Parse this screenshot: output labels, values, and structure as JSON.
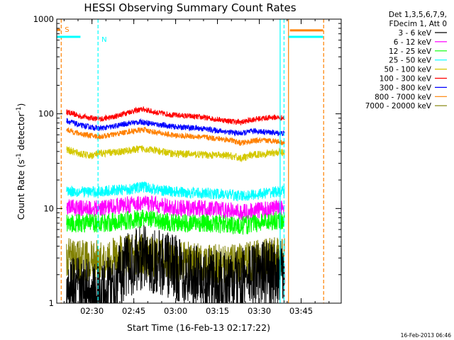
{
  "chart_data": {
    "type": "line",
    "title": "HESSI Observing Summary Count Rates",
    "xlabel": "Start Time (16-Feb-13 02:17:22)",
    "ylabel_main": "Count Rate (s",
    "ylabel_sup1": "-1",
    "ylabel_mid": " detector",
    "ylabel_sup2": "-1",
    "ylabel_end": ")",
    "footer": "16-Feb-2013 06:46",
    "y_scale": "log",
    "ylim": [
      1,
      1000
    ],
    "xlim_minutes": [
      0,
      102
    ],
    "y_ticks": [
      {
        "value": 1,
        "label": "1"
      },
      {
        "value": 10,
        "label": "10"
      },
      {
        "value": 100,
        "label": "100"
      },
      {
        "value": 1000,
        "label": "1000"
      }
    ],
    "x_ticks": [
      {
        "minutes": 12.63,
        "label": "02:30"
      },
      {
        "minutes": 27.63,
        "label": "02:45"
      },
      {
        "minutes": 42.63,
        "label": "03:00"
      },
      {
        "minutes": 57.63,
        "label": "03:15"
      },
      {
        "minutes": 72.63,
        "label": "03:30"
      },
      {
        "minutes": 87.63,
        "label": "03:45"
      }
    ],
    "legend_header": [
      "Det 1,3,5,6,7,9,",
      "FDecim 1, Att 0"
    ],
    "legend": [
      {
        "label": "3 - 6 keV",
        "color": "#000000"
      },
      {
        "label": "6 - 12 keV",
        "color": "#ff00ff"
      },
      {
        "label": "12 - 25 keV",
        "color": "#00ff00"
      },
      {
        "label": "25 - 50 keV",
        "color": "#00ffff"
      },
      {
        "label": "50 - 100 keV",
        "color": "#d4c800"
      },
      {
        "label": "100 - 300 keV",
        "color": "#ff0000"
      },
      {
        "label": "300 - 800 keV",
        "color": "#0000ff"
      },
      {
        "label": "800 - 7000 keV",
        "color": "#ff8000"
      },
      {
        "label": "7000 - 20000 keV",
        "color": "#808000"
      }
    ],
    "flags": [
      {
        "label": "S",
        "color": "#ff8000",
        "minutes": 1.6,
        "y_frac": 0.035
      },
      {
        "label": "N",
        "color": "#00ffff",
        "minutes": 14.8,
        "y_frac": 0.07
      }
    ],
    "vertical_lines": [
      {
        "minutes": 1.6,
        "color": "#ff8000",
        "dashed": true
      },
      {
        "minutes": 14.8,
        "color": "#00ffff",
        "dashed": true
      },
      {
        "minutes": 80.1,
        "color": "#00ffff",
        "dashed": false
      },
      {
        "minutes": 81.5,
        "color": "#00ffff",
        "dashed": true
      },
      {
        "minutes": 83.1,
        "color": "#ff8000",
        "dashed": false
      },
      {
        "minutes": 95.7,
        "color": "#ff8000",
        "dashed": true
      }
    ],
    "horizontal_bars": [
      {
        "color": "#00ffff",
        "x0": 0,
        "x1": 8.5,
        "y": 650
      },
      {
        "color": "#ff8000",
        "x0": 0,
        "x1": 1.3,
        "y": 770
      },
      {
        "color": "#00ffff",
        "x0": 83.1,
        "x1": 95.5,
        "y": 650
      },
      {
        "color": "#ff8000",
        "x0": 83.6,
        "x1": 95.5,
        "y": 760
      }
    ],
    "data_window_minutes": [
      3.5,
      81.7
    ],
    "series": [
      {
        "name": "100 - 300 keV",
        "color": "#ff0000",
        "noise": 0.03,
        "values": [
          [
            3.5,
            105
          ],
          [
            8,
            95
          ],
          [
            15,
            88
          ],
          [
            20,
            92
          ],
          [
            26,
            105
          ],
          [
            31,
            112
          ],
          [
            35,
            104
          ],
          [
            42,
            97
          ],
          [
            52,
            92
          ],
          [
            62,
            84
          ],
          [
            66,
            81
          ],
          [
            71,
            88
          ],
          [
            78,
            92
          ],
          [
            81.7,
            90
          ]
        ]
      },
      {
        "name": "300 - 800 keV",
        "color": "#0000ff",
        "noise": 0.03,
        "values": [
          [
            3.5,
            85
          ],
          [
            8,
            76
          ],
          [
            15,
            70
          ],
          [
            20,
            73
          ],
          [
            26,
            80
          ],
          [
            31,
            82
          ],
          [
            35,
            78
          ],
          [
            42,
            73
          ],
          [
            52,
            70
          ],
          [
            62,
            64
          ],
          [
            66,
            62
          ],
          [
            71,
            66
          ],
          [
            78,
            63
          ],
          [
            81.7,
            62
          ]
        ]
      },
      {
        "name": "800 - 7000 keV",
        "color": "#ff8000",
        "noise": 0.03,
        "values": [
          [
            3.5,
            68
          ],
          [
            8,
            62
          ],
          [
            15,
            57
          ],
          [
            20,
            60
          ],
          [
            26,
            65
          ],
          [
            31,
            68
          ],
          [
            35,
            64
          ],
          [
            42,
            59
          ],
          [
            52,
            57
          ],
          [
            62,
            53
          ],
          [
            66,
            49
          ],
          [
            71,
            52
          ],
          [
            78,
            52
          ],
          [
            81.7,
            49
          ]
        ]
      },
      {
        "name": "50 - 100 keV",
        "color": "#d4c800",
        "noise": 0.04,
        "values": [
          [
            3.5,
            42
          ],
          [
            8,
            38
          ],
          [
            12,
            36
          ],
          [
            15,
            38
          ],
          [
            20,
            39
          ],
          [
            26,
            41
          ],
          [
            31,
            43
          ],
          [
            35,
            41
          ],
          [
            42,
            38
          ],
          [
            52,
            37
          ],
          [
            62,
            36
          ],
          [
            66,
            34
          ],
          [
            71,
            37
          ],
          [
            78,
            39
          ],
          [
            81.7,
            39
          ]
        ]
      },
      {
        "name": "25 - 50 keV",
        "color": "#00ffff",
        "noise": 0.06,
        "values": [
          [
            3.5,
            15.5
          ],
          [
            8,
            15
          ],
          [
            15,
            15
          ],
          [
            20,
            15.5
          ],
          [
            26,
            16
          ],
          [
            31,
            17
          ],
          [
            35,
            16
          ],
          [
            42,
            15
          ],
          [
            52,
            14.5
          ],
          [
            62,
            14
          ],
          [
            66,
            13.5
          ],
          [
            71,
            14
          ],
          [
            78,
            15
          ],
          [
            81.7,
            15
          ]
        ]
      },
      {
        "name": "6 - 12 keV",
        "color": "#ff00ff",
        "noise": 0.09,
        "values": [
          [
            3.5,
            10.5
          ],
          [
            8,
            10
          ],
          [
            15,
            10
          ],
          [
            20,
            10.5
          ],
          [
            26,
            11
          ],
          [
            31,
            11.5
          ],
          [
            35,
            11
          ],
          [
            42,
            10
          ],
          [
            52,
            10
          ],
          [
            62,
            9.5
          ],
          [
            66,
            9
          ],
          [
            71,
            9.5
          ],
          [
            78,
            10
          ],
          [
            81.7,
            10.5
          ]
        ]
      },
      {
        "name": "12 - 25 keV",
        "color": "#00ff00",
        "noise": 0.1,
        "values": [
          [
            3.5,
            7
          ],
          [
            8,
            7
          ],
          [
            15,
            7
          ],
          [
            20,
            7.2
          ],
          [
            26,
            7.5
          ],
          [
            31,
            7.8
          ],
          [
            35,
            7.5
          ],
          [
            42,
            7
          ],
          [
            52,
            7
          ],
          [
            62,
            6.8
          ],
          [
            66,
            6.5
          ],
          [
            71,
            7
          ],
          [
            78,
            7.5
          ],
          [
            81.7,
            7.5
          ]
        ]
      },
      {
        "name": "7000 - 20000 keV",
        "color": "#808000",
        "noise": 0.22,
        "values": [
          [
            3.5,
            3
          ],
          [
            8,
            2.8
          ],
          [
            15,
            2.8
          ],
          [
            20,
            3
          ],
          [
            26,
            3.3
          ],
          [
            31,
            3.3
          ],
          [
            35,
            3
          ],
          [
            42,
            2.8
          ],
          [
            52,
            2.6
          ],
          [
            62,
            2.5
          ],
          [
            66,
            2.6
          ],
          [
            71,
            2.8
          ],
          [
            78,
            3
          ],
          [
            81.7,
            3
          ]
        ]
      },
      {
        "name": "3 - 6 keV",
        "color": "#000000",
        "noise": 0.35,
        "values": [
          [
            3.5,
            1.3
          ],
          [
            8,
            1.4
          ],
          [
            15,
            1.2
          ],
          [
            20,
            1.6
          ],
          [
            26,
            2.6
          ],
          [
            31,
            3
          ],
          [
            35,
            2.8
          ],
          [
            42,
            2.4
          ],
          [
            52,
            1.8
          ],
          [
            62,
            1.5
          ],
          [
            66,
            1.7
          ],
          [
            71,
            2
          ],
          [
            78,
            2.2
          ],
          [
            81.7,
            2
          ]
        ]
      }
    ]
  }
}
